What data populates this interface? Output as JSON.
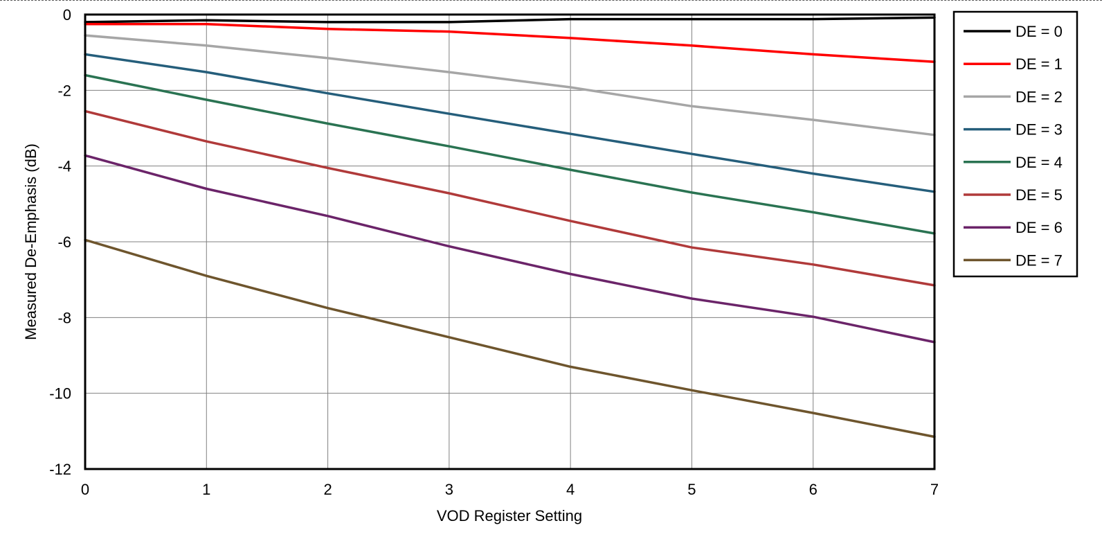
{
  "chart_data": {
    "type": "line",
    "title": "",
    "xlabel": "VOD Register Setting",
    "ylabel": "Measured De-Emphasis (dB)",
    "x": [
      0,
      1,
      2,
      3,
      4,
      5,
      6,
      7
    ],
    "xlim": [
      0,
      7
    ],
    "ylim": [
      -12,
      0
    ],
    "xticks": [
      0,
      1,
      2,
      3,
      4,
      5,
      6,
      7
    ],
    "yticks": [
      0,
      -2,
      -4,
      -6,
      -8,
      -10,
      -12
    ],
    "grid": true,
    "legend_position": "right",
    "series": [
      {
        "name": "DE = 0",
        "color": "#000000",
        "values": [
          -0.2,
          -0.15,
          -0.2,
          -0.2,
          -0.12,
          -0.12,
          -0.12,
          -0.08
        ]
      },
      {
        "name": "DE = 1",
        "color": "#ff0000",
        "values": [
          -0.25,
          -0.25,
          -0.38,
          -0.45,
          -0.62,
          -0.82,
          -1.05,
          -1.25
        ]
      },
      {
        "name": "DE = 2",
        "color": "#a6a6a6",
        "values": [
          -0.55,
          -0.82,
          -1.15,
          -1.52,
          -1.92,
          -2.42,
          -2.78,
          -3.18
        ]
      },
      {
        "name": "DE = 3",
        "color": "#255e7b",
        "values": [
          -1.05,
          -1.52,
          -2.08,
          -2.62,
          -3.15,
          -3.68,
          -4.2,
          -4.68
        ]
      },
      {
        "name": "DE = 4",
        "color": "#2a7352",
        "values": [
          -1.6,
          -2.25,
          -2.88,
          -3.48,
          -4.1,
          -4.7,
          -5.22,
          -5.78
        ]
      },
      {
        "name": "DE = 5",
        "color": "#b03a3a",
        "values": [
          -2.55,
          -3.35,
          -4.05,
          -4.72,
          -5.45,
          -6.15,
          -6.6,
          -7.15
        ]
      },
      {
        "name": "DE = 6",
        "color": "#6b2469",
        "values": [
          -3.72,
          -4.6,
          -5.32,
          -6.12,
          -6.85,
          -7.5,
          -7.98,
          -8.65
        ]
      },
      {
        "name": "DE = 7",
        "color": "#6e552d",
        "values": [
          -5.95,
          -6.9,
          -7.75,
          -8.52,
          -9.3,
          -9.92,
          -10.52,
          -11.15
        ]
      }
    ]
  }
}
